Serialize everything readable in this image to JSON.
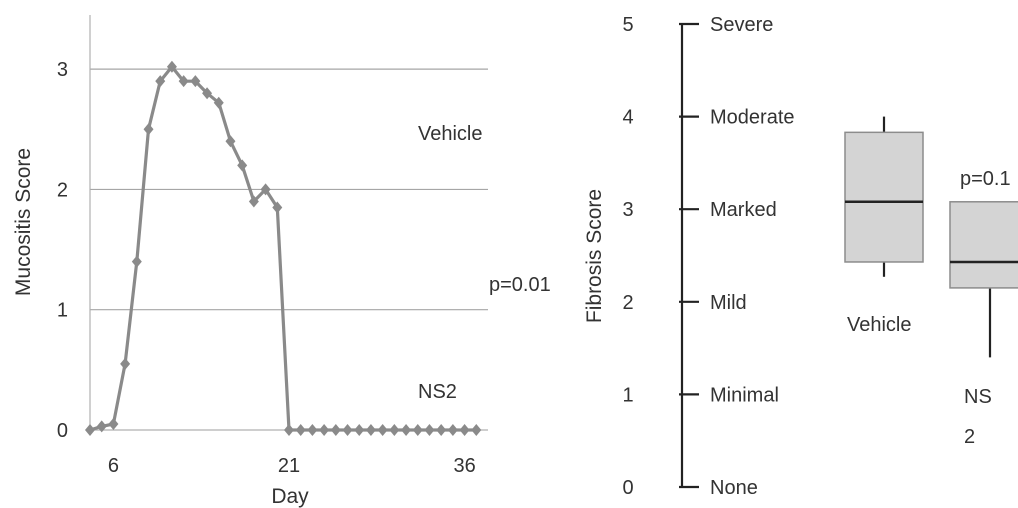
{
  "chart_data": [
    {
      "type": "line",
      "title": "",
      "xlabel": "Day",
      "ylabel": "Mucositis Score",
      "xlim": [
        4,
        38
      ],
      "ylim": [
        0,
        3.45
      ],
      "x_ticks": [
        6,
        21,
        36
      ],
      "y_ticks": [
        0,
        1,
        2,
        3
      ],
      "grid": "horizontal",
      "annotations": [
        "Vehicle",
        "NS2",
        "p=0.01"
      ],
      "colors": {
        "vehicle": "#8a8a8a",
        "ns2": "#b9b9b9",
        "error": "#333333",
        "grid": "#a6a6a6",
        "axis": "#b0b0b0"
      },
      "series": [
        {
          "key": "vehicle",
          "marker": "diamond",
          "x": [
            4,
            5,
            6,
            7,
            8,
            9,
            10,
            11,
            12,
            13,
            14,
            15,
            16,
            17,
            18,
            19,
            20,
            21,
            22,
            23,
            24,
            25,
            26,
            27,
            28,
            29,
            30,
            31,
            32,
            33,
            34,
            35,
            36,
            37
          ],
          "y": [
            0.0,
            0.03,
            0.05,
            0.55,
            1.4,
            2.5,
            2.9,
            3.02,
            2.9,
            2.9,
            2.8,
            2.72,
            2.4,
            2.2,
            1.9,
            2.0,
            1.85,
            0.0,
            0.0,
            0.0,
            0.0,
            0.0,
            0.0,
            0.0,
            0.0,
            0.0,
            0.0,
            0.0,
            0.0,
            0.0,
            0.0,
            0.0,
            0.0,
            0.0
          ],
          "error": []
        },
        {
          "key": "ns2",
          "marker": "triangle",
          "x": [],
          "y": [],
          "error": []
        }
      ]
    },
    {
      "type": "box",
      "title": "",
      "xlabel": "",
      "ylabel": "Fibrosis Score",
      "ylim": [
        0,
        5
      ],
      "y_ticks": [
        0,
        1,
        2,
        3,
        4,
        5
      ],
      "y_tick_labels": [
        "None",
        "Minimal",
        "Mild",
        "Marked",
        "Moderate",
        "Severe"
      ],
      "annotations": [
        "p=0.1"
      ],
      "colors": {
        "box_fill": "#d4d4d4",
        "box_edge": "#8c8c8c",
        "line": "#222222"
      },
      "boxes": [
        {
          "label": "Vehicle",
          "min": 2.27,
          "q1": 2.43,
          "median": 3.08,
          "q3": 3.83,
          "max": 4.0
        },
        {
          "label_lines": [
            "NS",
            "2"
          ],
          "min": 1.4,
          "q1": 2.15,
          "median": 2.43,
          "q3": 3.08,
          "max": 3.08
        }
      ]
    }
  ]
}
